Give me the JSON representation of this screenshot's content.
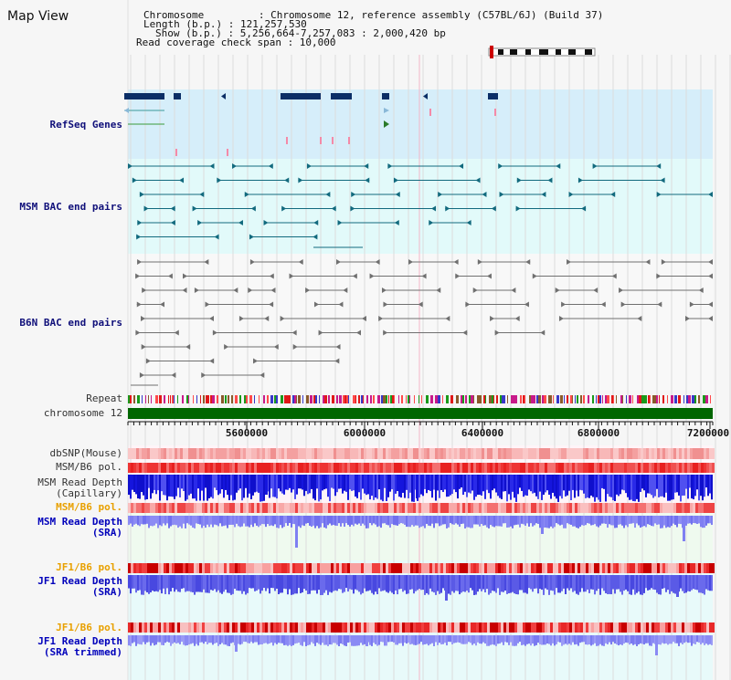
{
  "page": {
    "title": "Map View"
  },
  "info": {
    "chromosome": "Chromosome         : Chromosome 12, reference assembly (C57BL/6J) (Build 37)",
    "length": "Length (b.p.) : 121,257,530",
    "show": "Show (b.p.) : 5,256,664-7,257,083 : 2,000,420 bp",
    "coverage": "Read coverage check span : 10,000"
  },
  "tracks": {
    "refseq": "RefSeq Genes",
    "msm_bac": "MSM BAC end pairs",
    "b6n_bac": "B6N BAC end pairs",
    "repeat": "Repeat",
    "chromosome": "chromosome 12",
    "dbsnp": "dbSNP(Mouse)",
    "msm_b6_pol_1": "MSM/B6 pol.",
    "msm_depth_cap_1": "MSM Read Depth",
    "msm_depth_cap_2": "(Capillary)",
    "msm_b6_pol_2": "MSM/B6 pol.",
    "msm_depth_sra_1": "MSM Read Depth",
    "msm_depth_sra_2": "(SRA)",
    "jf1_b6_pol_1": "JF1/B6 pol.",
    "jf1_depth_sra_1": "JF1 Read Depth",
    "jf1_depth_sra_2": "(SRA)",
    "jf1_b6_pol_2": "JF1/B6 pol.",
    "jf1_depth_trim_1": "JF1 Read Depth",
    "jf1_depth_trim_2": "(SRA trimmed)"
  },
  "axis": {
    "ticks": [
      "5600000",
      "6000000",
      "6400000",
      "6800000",
      "7200000"
    ]
  },
  "colors": {
    "refseq_bg": "#d6eefa",
    "msm_bac_bg": "#e2fafa",
    "b6n_bac_bg": "#f8f8f8",
    "green_bg": "#effaef",
    "cyan_bg": "#e8fafa",
    "chromosome_bar": "#006600",
    "depth_dark": "#1515dd",
    "depth_light": "#7f7ff2",
    "pol_red": "#ee3333"
  }
}
